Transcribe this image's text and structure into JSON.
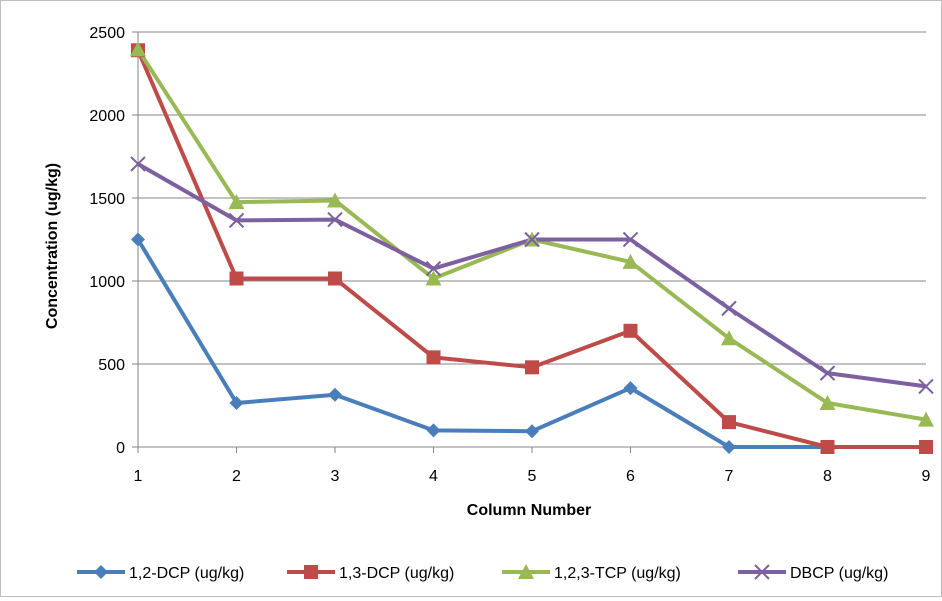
{
  "chart_data": {
    "type": "line",
    "title": "",
    "xlabel": "Column Number",
    "ylabel": "Concentration (ug/kg)",
    "x": [
      1,
      2,
      3,
      4,
      5,
      6,
      7,
      8,
      9
    ],
    "ylim": [
      0,
      2500
    ],
    "yticks": [
      0,
      500,
      1000,
      1500,
      2000,
      2500
    ],
    "grid": true,
    "legend_position": "bottom",
    "series": [
      {
        "name": "1,2-DCP (ug/kg)",
        "color": "#4A7EBB",
        "marker": "diamond",
        "values": [
          1250,
          265,
          315,
          100,
          95,
          355,
          0,
          0,
          0
        ]
      },
      {
        "name": "1,3-DCP (ug/kg)",
        "color": "#BE4B48",
        "marker": "square",
        "values": [
          2390,
          1015,
          1015,
          540,
          480,
          700,
          150,
          0,
          0
        ]
      },
      {
        "name": "1,2,3-TCP (ug/kg)",
        "color": "#98B954",
        "marker": "triangle",
        "values": [
          2395,
          1475,
          1485,
          1015,
          1250,
          1115,
          655,
          265,
          165
        ]
      },
      {
        "name": "DBCP (ug/kg)",
        "color": "#7D60A0",
        "marker": "x",
        "values": [
          1705,
          1365,
          1370,
          1075,
          1250,
          1250,
          835,
          445,
          365
        ]
      }
    ]
  }
}
